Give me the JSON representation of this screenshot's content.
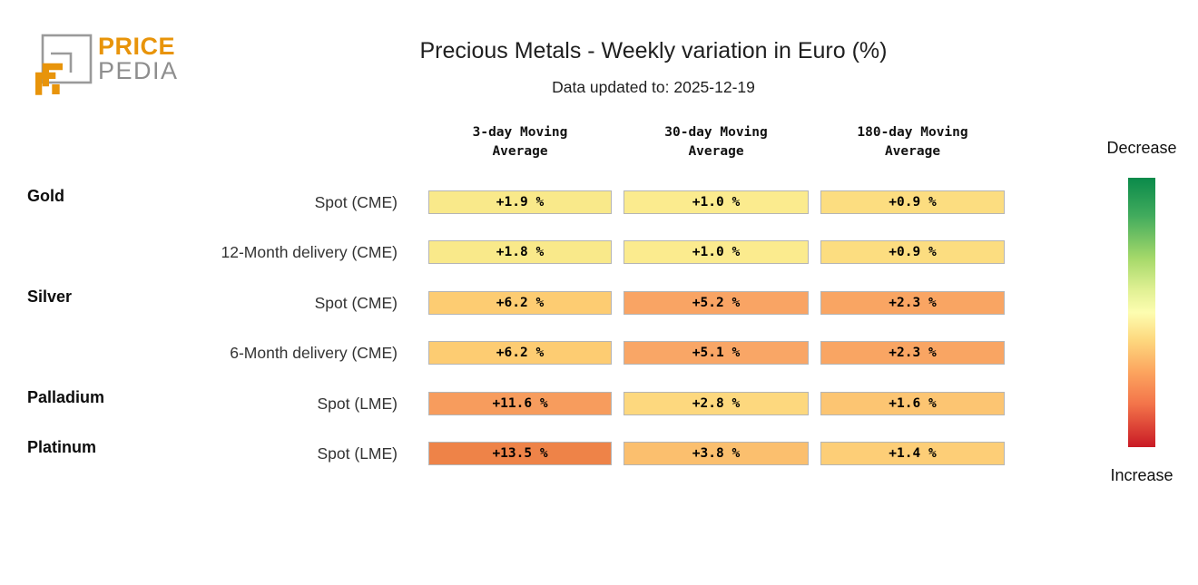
{
  "logo": {
    "brand_top": "PRICE",
    "brand_bottom": "PEDIA",
    "orange": "#E8940A",
    "gray": "#8E8E8E"
  },
  "header": {
    "title": "Precious Metals - Weekly variation in Euro (%)",
    "subtitle": "Data updated to: 2025-12-19"
  },
  "columns": [
    {
      "line1": "3-day Moving",
      "line2": "Average"
    },
    {
      "line1": "30-day Moving",
      "line2": "Average"
    },
    {
      "line1": "180-day Moving",
      "line2": "Average"
    }
  ],
  "rows": [
    {
      "group": "Gold",
      "series": "Spot (CME)",
      "cells": [
        {
          "label": "+1.9 %",
          "bg": "#f9e98a"
        },
        {
          "label": "+1.0 %",
          "bg": "#fbeb8e"
        },
        {
          "label": "+0.9 %",
          "bg": "#fcdd80"
        }
      ]
    },
    {
      "group": "",
      "series": "12-Month delivery (CME)",
      "cells": [
        {
          "label": "+1.8 %",
          "bg": "#f9e98a"
        },
        {
          "label": "+1.0 %",
          "bg": "#fbeb8e"
        },
        {
          "label": "+0.9 %",
          "bg": "#fcdd80"
        }
      ]
    },
    {
      "group": "Silver",
      "series": "Spot (CME)",
      "cells": [
        {
          "label": "+6.2 %",
          "bg": "#fdcc72"
        },
        {
          "label": "+5.2 %",
          "bg": "#f9a464"
        },
        {
          "label": "+2.3 %",
          "bg": "#f9a563"
        }
      ]
    },
    {
      "group": "",
      "series": "6-Month delivery (CME)",
      "cells": [
        {
          "label": "+6.2 %",
          "bg": "#fdcc72"
        },
        {
          "label": "+5.1 %",
          "bg": "#f9a666"
        },
        {
          "label": "+2.3 %",
          "bg": "#f9a563"
        }
      ]
    },
    {
      "group": "Palladium",
      "series": "Spot (LME)",
      "cells": [
        {
          "label": "+11.6 %",
          "bg": "#f79c5d"
        },
        {
          "label": "+2.8 %",
          "bg": "#fdd87e"
        },
        {
          "label": "+1.6 %",
          "bg": "#fcc572"
        }
      ]
    },
    {
      "group": "Platinum",
      "series": "Spot (LME)",
      "cells": [
        {
          "label": "+13.5 %",
          "bg": "#ee8348"
        },
        {
          "label": "+3.8 %",
          "bg": "#fbbf6e"
        },
        {
          "label": "+1.4 %",
          "bg": "#fdce77"
        }
      ]
    }
  ],
  "legend": {
    "top_label": "Decrease",
    "bottom_label": "Increase",
    "gradient_stops": [
      "#0a8a4a 0%",
      "#41ab5d 14%",
      "#a6d96a 30%",
      "#e2f195 42%",
      "#fdfdb0 50%",
      "#fdd97f 60%",
      "#fca55f 72%",
      "#f3744a 84%",
      "#c91a25 100%"
    ]
  },
  "chart_data": {
    "type": "heatmap",
    "title": "Precious Metals - Weekly variation in Euro (%)",
    "subtitle": "Data updated to: 2025-12-19",
    "columns": [
      "3-day Moving Average",
      "30-day Moving Average",
      "180-day Moving Average"
    ],
    "rows": [
      {
        "metal": "Gold",
        "series": "Spot (CME)",
        "values_pct": [
          1.9,
          1.0,
          0.9
        ]
      },
      {
        "metal": "Gold",
        "series": "12-Month delivery (CME)",
        "values_pct": [
          1.8,
          1.0,
          0.9
        ]
      },
      {
        "metal": "Silver",
        "series": "Spot (CME)",
        "values_pct": [
          6.2,
          5.2,
          2.3
        ]
      },
      {
        "metal": "Silver",
        "series": "6-Month delivery (CME)",
        "values_pct": [
          6.2,
          5.1,
          2.3
        ]
      },
      {
        "metal": "Palladium",
        "series": "Spot (LME)",
        "values_pct": [
          11.6,
          2.8,
          1.6
        ]
      },
      {
        "metal": "Platinum",
        "series": "Spot (LME)",
        "values_pct": [
          13.5,
          3.8,
          1.4
        ]
      }
    ],
    "unit": "%",
    "colorscale": {
      "green_end": "Decrease",
      "red_end": "Increase",
      "note": "red-yellow-green scale, shading normalized per column"
    },
    "legend_position": "right"
  }
}
